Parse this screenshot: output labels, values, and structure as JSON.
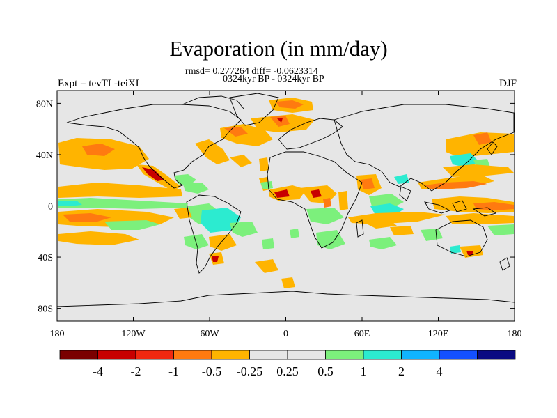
{
  "title": "Evaporation (in mm/day)",
  "stats_line": "rmsd= 0.277264 diff= -0.0623314",
  "period_line": "0324kyr BP - 0324kyr BP",
  "left_label": "Expt = tevTL-teiXL",
  "right_label": "DJF",
  "lat_ticks": [
    {
      "label": "80N",
      "value": 80
    },
    {
      "label": "40N",
      "value": 40
    },
    {
      "label": "0",
      "value": 0
    },
    {
      "label": "40S",
      "value": -40
    },
    {
      "label": "80S",
      "value": -80
    }
  ],
  "lon_ticks": [
    {
      "label": "180",
      "value": -180
    },
    {
      "label": "120W",
      "value": -120
    },
    {
      "label": "60W",
      "value": -60
    },
    {
      "label": "0",
      "value": 0
    },
    {
      "label": "60E",
      "value": 60
    },
    {
      "label": "120E",
      "value": 120
    },
    {
      "label": "180",
      "value": 180
    }
  ],
  "colorbar": {
    "colors": [
      "#7a0000",
      "#c80000",
      "#f02810",
      "#ff7a10",
      "#ffb400",
      "#e6e6e6",
      "#e6e6e6",
      "#7cf07c",
      "#2cebd0",
      "#10b4ff",
      "#1450ff",
      "#0a0a82"
    ],
    "labels": [
      "-4",
      "-2",
      "-1",
      "-0.5",
      "-0.25",
      "0.25",
      "0.5",
      "1",
      "2",
      "4"
    ]
  }
}
